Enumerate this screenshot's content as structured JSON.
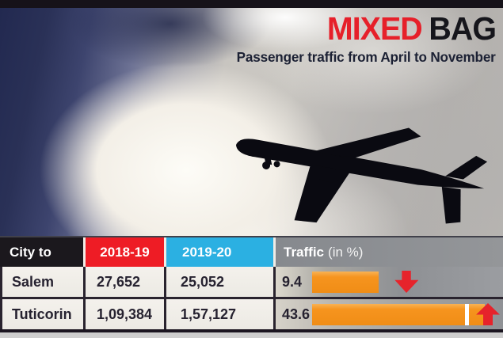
{
  "title": {
    "highlight": "MIXED",
    "rest": "BAG"
  },
  "subtitle": "Passenger traffic from April to November",
  "icons": {
    "airplane": "airplane-silhouette",
    "down": "red-block-down-arrow",
    "up": "red-block-up-arrow"
  },
  "colors": {
    "headline_red": "#e6202a",
    "headline_dark": "#16161c",
    "header_black": "#1b181d",
    "header_red": "#ee1c25",
    "header_cyan": "#2bb0e2",
    "header_gray": "#8c8f93",
    "bar_orange": "#f6941e",
    "arrow_red": "#e6232b",
    "sky_navy": "#2a3157"
  },
  "chart_data": {
    "type": "table",
    "title": "MIXED BAG",
    "subtitle": "Passenger traffic from April to November",
    "columns": [
      "City to",
      "2018-19",
      "2019-20",
      "Traffic (in %)"
    ],
    "header": {
      "city": "City to",
      "y1": "2018-19",
      "y2": "2019-20",
      "traffic_bold": "Traffic",
      "traffic_rest": "(in %)"
    },
    "rows": [
      {
        "city": "Salem",
        "y2018_19": "27,652",
        "y2019_20": "25,052",
        "traffic_pct": "9.4",
        "direction": "down",
        "bar_len": 0.35,
        "bar_tick": false
      },
      {
        "city": "Tuticorin",
        "y2018_19": "1,09,384",
        "y2019_20": "1,57,127",
        "traffic_pct": "43.6",
        "direction": "up",
        "bar_len": 0.905,
        "bar_tick": true
      }
    ],
    "bar_color": "#f6941e",
    "legend": "none",
    "notes": "orange horizontal bars with red direction arrows"
  }
}
